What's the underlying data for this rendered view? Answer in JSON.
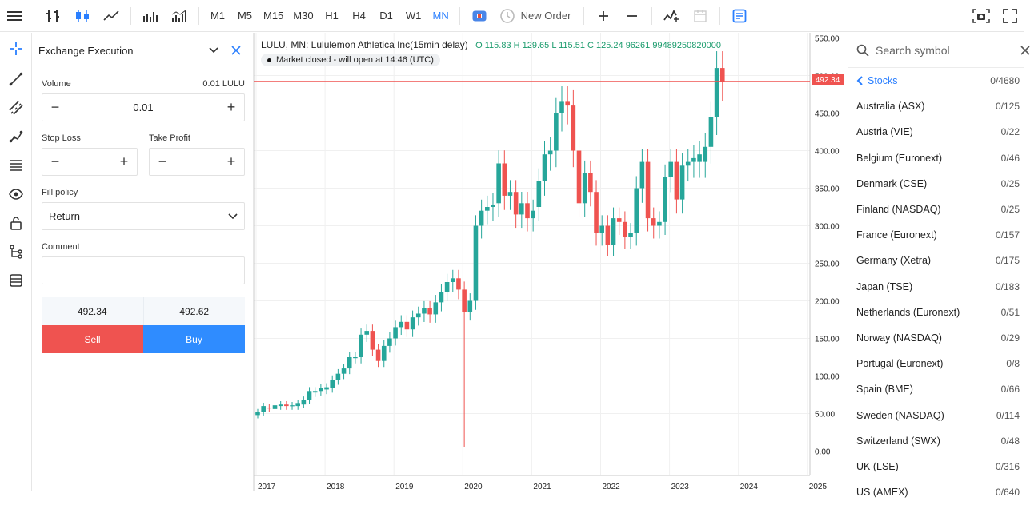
{
  "toolbar": {
    "timeframes": [
      "M1",
      "M5",
      "M15",
      "M30",
      "H1",
      "H4",
      "D1",
      "W1",
      "MN"
    ],
    "active_timeframe": "MN",
    "new_order_label": "New Order"
  },
  "order_panel": {
    "title": "Exchange Execution",
    "volume_label": "Volume",
    "volume_hint": "0.01 LULU",
    "volume_value": "0.01",
    "stop_loss_label": "Stop Loss",
    "take_profit_label": "Take Profit",
    "fill_policy_label": "Fill policy",
    "fill_policy_value": "Return",
    "comment_label": "Comment",
    "bid": "492.34",
    "ask": "492.62",
    "sell_label": "Sell",
    "buy_label": "Buy"
  },
  "chart": {
    "symbol_title": "LULU, MN: Lululemon Athletica Inc(15min delay)",
    "ohlc_text": "O 115.83 H 129.65 L 115.51 C 125.24 96261 99489250820000",
    "market_status": "Market closed - will open at 14:46 (UTC)",
    "current_price_label": "492.34",
    "colors": {
      "up": "#26a69a",
      "down": "#ef5350"
    }
  },
  "chart_data": {
    "type": "candlestick",
    "title": "LULU, MN: Lululemon Athletica Inc(15min delay)",
    "y_ticks": [
      "550.00",
      "500.00",
      "450.00",
      "400.00",
      "350.00",
      "300.00",
      "250.00",
      "200.00",
      "150.00",
      "100.00",
      "50.00",
      "0.00"
    ],
    "x_ticks": [
      "2017",
      "2018",
      "2019",
      "2020",
      "2021",
      "2022",
      "2023",
      "2024",
      "2025"
    ],
    "ylim": [
      0,
      550
    ],
    "current_price": 492.34,
    "candles": [
      {
        "o": 48,
        "c": 52
      },
      {
        "o": 52,
        "c": 60
      },
      {
        "o": 58,
        "c": 57
      },
      {
        "o": 56,
        "c": 61
      },
      {
        "o": 60,
        "c": 62
      },
      {
        "o": 62,
        "c": 60
      },
      {
        "o": 60,
        "c": 61
      },
      {
        "o": 60,
        "c": 64
      },
      {
        "o": 62,
        "c": 68
      },
      {
        "o": 68,
        "c": 80
      },
      {
        "o": 78,
        "c": 80
      },
      {
        "o": 80,
        "c": 84
      },
      {
        "o": 82,
        "c": 85
      },
      {
        "o": 84,
        "c": 95
      },
      {
        "o": 95,
        "c": 103
      },
      {
        "o": 103,
        "c": 110
      },
      {
        "o": 110,
        "c": 125
      },
      {
        "o": 125,
        "c": 125
      },
      {
        "o": 125,
        "c": 155
      },
      {
        "o": 155,
        "c": 160
      },
      {
        "o": 160,
        "c": 135
      },
      {
        "o": 135,
        "c": 120
      },
      {
        "o": 120,
        "c": 140
      },
      {
        "o": 140,
        "c": 150
      },
      {
        "o": 150,
        "c": 165
      },
      {
        "o": 165,
        "c": 172
      },
      {
        "o": 172,
        "c": 162
      },
      {
        "o": 162,
        "c": 178
      },
      {
        "o": 178,
        "c": 183
      },
      {
        "o": 183,
        "c": 190
      },
      {
        "o": 190,
        "c": 182
      },
      {
        "o": 182,
        "c": 198
      },
      {
        "o": 198,
        "c": 212
      },
      {
        "o": 212,
        "c": 225
      },
      {
        "o": 225,
        "c": 230
      },
      {
        "o": 230,
        "c": 215
      },
      {
        "o": 215,
        "c": 185
      },
      {
        "o": 185,
        "c": 200
      },
      {
        "o": 200,
        "c": 300
      },
      {
        "o": 300,
        "c": 320
      },
      {
        "o": 320,
        "c": 325
      },
      {
        "o": 325,
        "c": 328
      },
      {
        "o": 330,
        "c": 383
      },
      {
        "o": 383,
        "c": 340
      },
      {
        "o": 340,
        "c": 345
      },
      {
        "o": 345,
        "c": 315
      },
      {
        "o": 315,
        "c": 330
      },
      {
        "o": 330,
        "c": 310
      },
      {
        "o": 310,
        "c": 320
      },
      {
        "o": 325,
        "c": 360
      },
      {
        "o": 360,
        "c": 395
      },
      {
        "o": 395,
        "c": 400
      },
      {
        "o": 400,
        "c": 450
      },
      {
        "o": 450,
        "c": 465
      },
      {
        "o": 465,
        "c": 460
      },
      {
        "o": 460,
        "c": 400
      },
      {
        "o": 400,
        "c": 330
      },
      {
        "o": 330,
        "c": 370
      },
      {
        "o": 370,
        "c": 345
      },
      {
        "o": 345,
        "c": 290
      },
      {
        "o": 290,
        "c": 300
      },
      {
        "o": 300,
        "c": 275
      },
      {
        "o": 275,
        "c": 310
      },
      {
        "o": 310,
        "c": 305
      },
      {
        "o": 305,
        "c": 285
      },
      {
        "o": 285,
        "c": 290
      },
      {
        "o": 290,
        "c": 350
      },
      {
        "o": 350,
        "c": 385
      },
      {
        "o": 385,
        "c": 310
      },
      {
        "o": 310,
        "c": 300
      },
      {
        "o": 300,
        "c": 305
      },
      {
        "o": 305,
        "c": 365
      },
      {
        "o": 365,
        "c": 385
      },
      {
        "o": 385,
        "c": 335
      },
      {
        "o": 335,
        "c": 380
      },
      {
        "o": 380,
        "c": 385
      },
      {
        "o": 385,
        "c": 390
      },
      {
        "o": 385,
        "c": 395
      },
      {
        "o": 385,
        "c": 405
      },
      {
        "o": 405,
        "c": 445
      },
      {
        "o": 445,
        "c": 510
      },
      {
        "o": 510,
        "c": 492
      }
    ]
  },
  "symbols": {
    "search_placeholder": "Search symbol",
    "header_label": "Stocks",
    "header_count": "0/4680",
    "items": [
      {
        "name": "Australia (ASX)",
        "count": "0/125"
      },
      {
        "name": "Austria (VIE)",
        "count": "0/22"
      },
      {
        "name": "Belgium (Euronext)",
        "count": "0/46"
      },
      {
        "name": "Denmark (CSE)",
        "count": "0/25"
      },
      {
        "name": "Finland (NASDAQ)",
        "count": "0/25"
      },
      {
        "name": "France (Euronext)",
        "count": "0/157"
      },
      {
        "name": "Germany (Xetra)",
        "count": "0/175"
      },
      {
        "name": "Japan (TSE)",
        "count": "0/183"
      },
      {
        "name": "Netherlands (Euronext)",
        "count": "0/51"
      },
      {
        "name": "Norway (NASDAQ)",
        "count": "0/29"
      },
      {
        "name": "Portugal (Euronext)",
        "count": "0/8"
      },
      {
        "name": "Spain (BME)",
        "count": "0/66"
      },
      {
        "name": "Sweden (NASDAQ)",
        "count": "0/114"
      },
      {
        "name": "Switzerland (SWX)",
        "count": "0/48"
      },
      {
        "name": "UK (LSE)",
        "count": "0/316"
      },
      {
        "name": "US (AMEX)",
        "count": "0/640"
      }
    ]
  }
}
